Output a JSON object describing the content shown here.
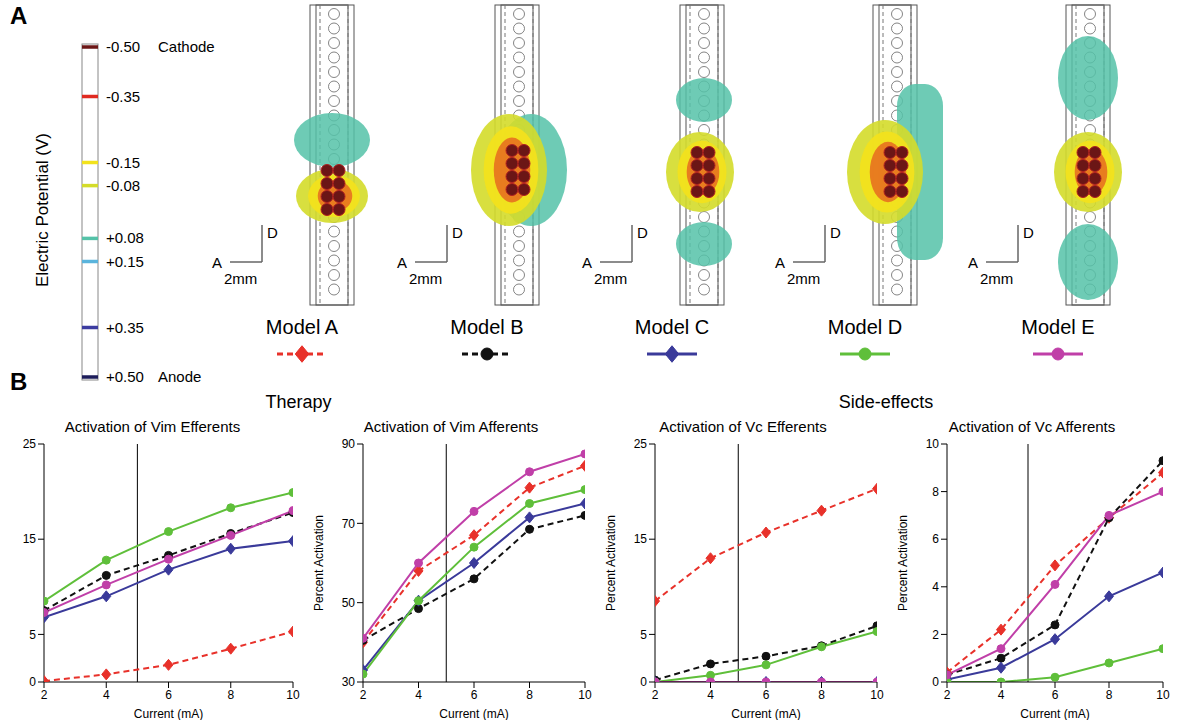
{
  "panel_a": {
    "label": "A",
    "colorbar": {
      "title": "Electric Potential (V)",
      "lim": [
        -0.5,
        0.5
      ],
      "ticks": [
        {
          "value": -0.5,
          "label": "-0.50",
          "name": "Cathode",
          "color": "#6b1616"
        },
        {
          "value": -0.35,
          "label": "-0.35",
          "color": "#e02a20"
        },
        {
          "value": -0.15,
          "label": "-0.15",
          "color": "#f2e21c"
        },
        {
          "value": -0.08,
          "label": "-0.08",
          "color": "#d4dc2a"
        },
        {
          "value": 0.08,
          "label": "+0.08",
          "color": "#55c2a8"
        },
        {
          "value": 0.15,
          "label": "+0.15",
          "color": "#5ab4dc"
        },
        {
          "value": 0.35,
          "label": "+0.35",
          "color": "#3c3ca0"
        },
        {
          "value": 0.5,
          "label": "+0.50",
          "name": "Anode",
          "color": "#1c1c5a"
        }
      ]
    },
    "scale_bar": {
      "vertical": "D",
      "horizontal": "A",
      "length": "2mm"
    },
    "models": [
      {
        "name": "Model A",
        "color": "#e8312a",
        "marker": "diamond",
        "line_style": "dashed"
      },
      {
        "name": "Model B",
        "color": "#111111",
        "marker": "circle",
        "line_style": "dashed"
      },
      {
        "name": "Model C",
        "color": "#3a3a9a",
        "marker": "diamond",
        "line_style": "solid"
      },
      {
        "name": "Model D",
        "color": "#5fbf3a",
        "marker": "circle",
        "line_style": "solid"
      },
      {
        "name": "Model E",
        "color": "#c03fa8",
        "marker": "circle",
        "line_style": "solid"
      }
    ]
  },
  "panel_b": {
    "label": "B"
  },
  "chart_data": [
    {
      "type": "line",
      "group": "Therapy",
      "title": "Activation of Vim Efferents",
      "xlabel": "Current (mA)",
      "x": [
        2,
        4,
        6,
        8,
        10
      ],
      "xlim": [
        2,
        10
      ],
      "xticks": [
        2,
        4,
        6,
        8,
        10
      ],
      "ylim": [
        0,
        25
      ],
      "yticks": [
        0,
        5,
        15,
        25
      ],
      "grid": false,
      "reference_x": 5,
      "series": [
        {
          "name": "Model A",
          "color": "#e8312a",
          "marker": "diamond",
          "line_style": "dashed",
          "values": [
            0.1,
            0.8,
            1.8,
            3.5,
            5.3
          ]
        },
        {
          "name": "Model B",
          "color": "#111111",
          "marker": "circle",
          "line_style": "dashed",
          "values": [
            7.5,
            11.2,
            13.3,
            15.6,
            17.8
          ]
        },
        {
          "name": "Model C",
          "color": "#3a3a9a",
          "marker": "diamond",
          "line_style": "solid",
          "values": [
            6.8,
            9,
            11.8,
            14,
            14.8
          ]
        },
        {
          "name": "Model D",
          "color": "#5fbf3a",
          "marker": "circle",
          "line_style": "solid",
          "values": [
            8.5,
            12.8,
            15.8,
            18.3,
            19.9
          ]
        },
        {
          "name": "Model E",
          "color": "#c03fa8",
          "marker": "circle",
          "line_style": "solid",
          "values": [
            7.3,
            10.2,
            12.9,
            15.4,
            18
          ]
        }
      ]
    },
    {
      "type": "line",
      "group": "Therapy",
      "title": "Activation of Vim Afferents",
      "xlabel": "Current (mA)",
      "ylabel": "Percent Activation",
      "x": [
        2,
        4,
        6,
        8,
        10
      ],
      "xlim": [
        2,
        10
      ],
      "xticks": [
        2,
        4,
        6,
        8,
        10
      ],
      "ylim": [
        30,
        90
      ],
      "yticks": [
        30,
        50,
        70,
        90
      ],
      "grid": false,
      "reference_x": 5,
      "series": [
        {
          "name": "Model A",
          "color": "#e8312a",
          "marker": "diamond",
          "line_style": "dashed",
          "values": [
            40,
            58,
            67,
            79,
            84.5
          ]
        },
        {
          "name": "Model B",
          "color": "#111111",
          "marker": "circle",
          "line_style": "dashed",
          "values": [
            40.5,
            48.5,
            56,
            68.5,
            72
          ]
        },
        {
          "name": "Model C",
          "color": "#3a3a9a",
          "marker": "diamond",
          "line_style": "solid",
          "values": [
            33,
            50.5,
            60,
            71.5,
            75
          ]
        },
        {
          "name": "Model D",
          "color": "#5fbf3a",
          "marker": "circle",
          "line_style": "solid",
          "values": [
            32,
            50.5,
            64,
            75,
            78.5
          ]
        },
        {
          "name": "Model E",
          "color": "#c03fa8",
          "marker": "circle",
          "line_style": "solid",
          "values": [
            41,
            60,
            73,
            83,
            87.5
          ]
        }
      ]
    },
    {
      "type": "line",
      "group": "Side-effects",
      "title": "Activation of Vc Efferents",
      "xlabel": "Current (mA)",
      "ylabel": "Percent Activation",
      "x": [
        2,
        4,
        6,
        8,
        10
      ],
      "xlim": [
        2,
        10
      ],
      "xticks": [
        2,
        4,
        6,
        8,
        10
      ],
      "ylim": [
        0,
        25
      ],
      "yticks": [
        0,
        5,
        15,
        25
      ],
      "grid": false,
      "reference_x": 5,
      "series": [
        {
          "name": "Model A",
          "color": "#e8312a",
          "marker": "diamond",
          "line_style": "dashed",
          "values": [
            8.5,
            13,
            15.7,
            18,
            20.3
          ]
        },
        {
          "name": "Model B",
          "color": "#111111",
          "marker": "circle",
          "line_style": "dashed",
          "values": [
            0.2,
            1.9,
            2.7,
            3.8,
            5.9
          ]
        },
        {
          "name": "Model C",
          "color": "#3a3a9a",
          "marker": "diamond",
          "line_style": "solid",
          "values": [
            0,
            0,
            0,
            0,
            0
          ]
        },
        {
          "name": "Model D",
          "color": "#5fbf3a",
          "marker": "circle",
          "line_style": "solid",
          "values": [
            0,
            0.7,
            1.8,
            3.7,
            5.3
          ]
        },
        {
          "name": "Model E",
          "color": "#c03fa8",
          "marker": "circle",
          "line_style": "solid",
          "values": [
            0,
            0,
            0,
            0,
            0
          ]
        }
      ]
    },
    {
      "type": "line",
      "group": "Side-effects",
      "title": "Activation of Vc Afferents",
      "xlabel": "Current (mA)",
      "ylabel": "Percent Activation",
      "x": [
        2,
        4,
        6,
        8,
        10
      ],
      "xlim": [
        2,
        10
      ],
      "xticks": [
        2,
        4,
        6,
        8,
        10
      ],
      "ylim": [
        0,
        10
      ],
      "yticks": [
        0,
        2,
        4,
        6,
        8,
        10
      ],
      "grid": false,
      "reference_x": 5,
      "series": [
        {
          "name": "Model A",
          "color": "#e8312a",
          "marker": "diamond",
          "line_style": "dashed",
          "values": [
            0.4,
            2.2,
            4.9,
            6.9,
            8.8
          ]
        },
        {
          "name": "Model B",
          "color": "#111111",
          "marker": "circle",
          "line_style": "dashed",
          "values": [
            0.3,
            1.0,
            2.4,
            6.9,
            9.3
          ]
        },
        {
          "name": "Model C",
          "color": "#3a3a9a",
          "marker": "diamond",
          "line_style": "solid",
          "values": [
            0.1,
            0.6,
            1.8,
            3.6,
            4.6
          ]
        },
        {
          "name": "Model D",
          "color": "#5fbf3a",
          "marker": "circle",
          "line_style": "solid",
          "values": [
            0,
            0,
            0.2,
            0.8,
            1.4
          ]
        },
        {
          "name": "Model E",
          "color": "#c03fa8",
          "marker": "circle",
          "line_style": "solid",
          "values": [
            0.3,
            1.4,
            4.1,
            7.0,
            8.0
          ]
        }
      ]
    }
  ]
}
